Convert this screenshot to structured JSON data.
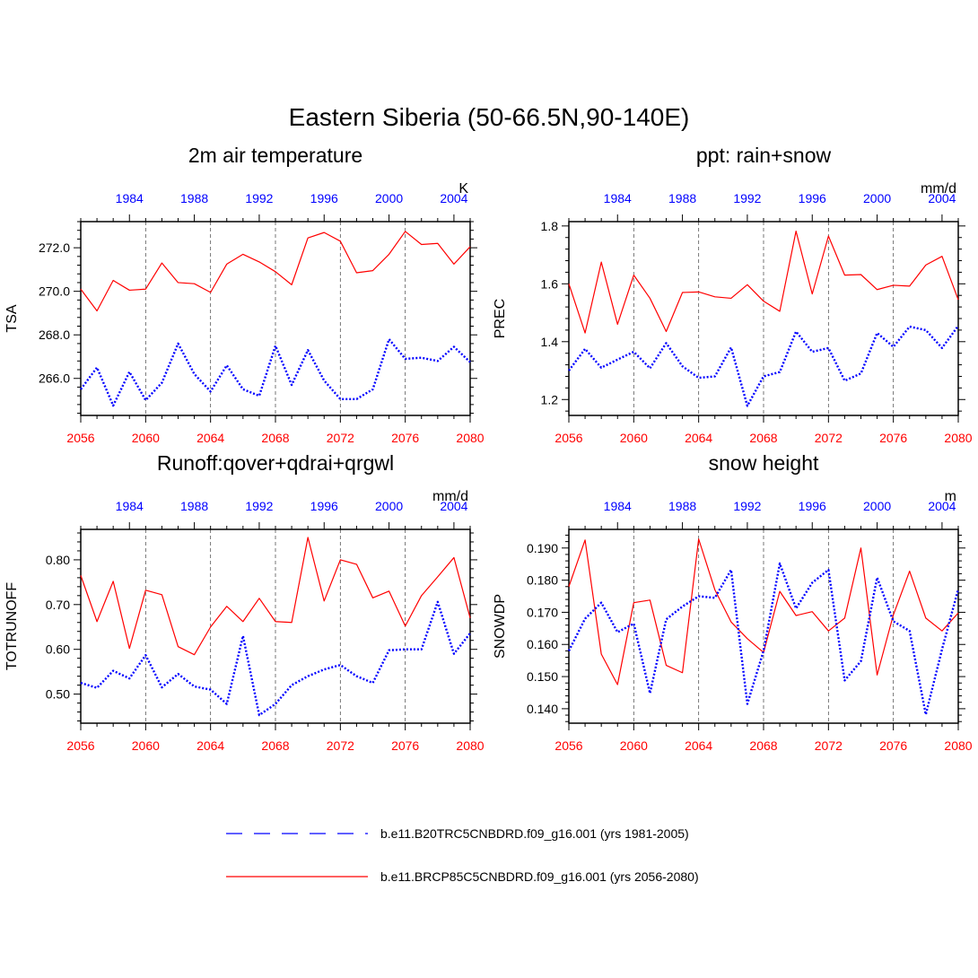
{
  "title": "Eastern Siberia (50-66.5N,90-140E)",
  "colors": {
    "bottom_axis": "#ff0000",
    "top_axis": "#0000ff",
    "future_series": "#ff0000",
    "historical_series": "#0000ff",
    "frame": "#000000",
    "gridline": "#555555"
  },
  "chart_data": [
    {
      "type": "line",
      "title": "2m air temperature",
      "ylabel": "TSA",
      "units": "K",
      "ylim": [
        264.3,
        273.2
      ],
      "yticks": [
        266.0,
        268.0,
        270.0,
        272.0
      ],
      "ytick_labels": [
        "266.0",
        "268.0",
        "270.0",
        "272.0"
      ],
      "xlim": [
        2056,
        2080
      ],
      "xticks": [
        2056,
        2060,
        2064,
        2068,
        2072,
        2076,
        2080
      ],
      "xtick_labels": [
        "2056",
        "2060",
        "2064",
        "2068",
        "2072",
        "2076",
        "2080"
      ],
      "top_xlim": [
        1981,
        2005
      ],
      "top_xticks": [
        1984,
        1988,
        1992,
        1996,
        2000,
        2004
      ],
      "top_xtick_labels": [
        "1984",
        "1988",
        "1992",
        "1996",
        "2000",
        "2004"
      ],
      "gridlines_x": [
        2060,
        2064,
        2068,
        2072,
        2076
      ],
      "series": [
        {
          "name": "b.e11.BRCP85C5CNBDRD.f09_g16.001 (yrs 2056-2080)",
          "axis": "bottom",
          "style": "solid",
          "x": [
            2056,
            2057,
            2058,
            2059,
            2060,
            2061,
            2062,
            2063,
            2064,
            2065,
            2066,
            2067,
            2068,
            2069,
            2070,
            2071,
            2072,
            2073,
            2074,
            2075,
            2076,
            2077,
            2078,
            2079,
            2080
          ],
          "values": [
            270.1,
            269.1,
            270.5,
            270.05,
            270.1,
            271.3,
            270.4,
            270.35,
            269.95,
            271.25,
            271.7,
            271.35,
            270.9,
            270.3,
            272.45,
            272.7,
            272.3,
            270.85,
            270.95,
            271.7,
            272.75,
            272.15,
            272.2,
            271.25,
            272.05
          ]
        },
        {
          "name": "b.e11.B20TRC5CNBDRD.f09_g16.001 (yrs 1981-2005)",
          "axis": "top",
          "style": "dotted",
          "x": [
            1981,
            1982,
            1983,
            1984,
            1985,
            1986,
            1987,
            1988,
            1989,
            1990,
            1991,
            1992,
            1993,
            1994,
            1995,
            1996,
            1997,
            1998,
            1999,
            2000,
            2001,
            2002,
            2003,
            2004,
            2005
          ],
          "values": [
            265.5,
            266.5,
            264.75,
            266.3,
            265.0,
            265.8,
            267.6,
            266.2,
            265.4,
            266.6,
            265.5,
            265.2,
            267.5,
            265.7,
            267.3,
            265.9,
            265.05,
            265.05,
            265.5,
            267.8,
            266.9,
            266.95,
            266.8,
            267.45,
            266.75
          ]
        }
      ]
    },
    {
      "type": "line",
      "title": "ppt: rain+snow",
      "ylabel": "PREC",
      "units": "mm/d",
      "ylim": [
        1.145,
        1.815
      ],
      "yticks": [
        1.2,
        1.4,
        1.6,
        1.8
      ],
      "ytick_labels": [
        "1.2",
        "1.4",
        "1.6",
        "1.8"
      ],
      "xlim": [
        2056,
        2080
      ],
      "xticks": [
        2056,
        2060,
        2064,
        2068,
        2072,
        2076,
        2080
      ],
      "xtick_labels": [
        "2056",
        "2060",
        "2064",
        "2068",
        "2072",
        "2076",
        "2080"
      ],
      "top_xlim": [
        1981,
        2005
      ],
      "top_xticks": [
        1984,
        1988,
        1992,
        1996,
        2000,
        2004
      ],
      "top_xtick_labels": [
        "1984",
        "1988",
        "1992",
        "1996",
        "2000",
        "2004"
      ],
      "gridlines_x": [
        2060,
        2064,
        2068,
        2072,
        2076
      ],
      "series": [
        {
          "name": "b.e11.BRCP85C5CNBDRD.f09_g16.001 (yrs 2056-2080)",
          "axis": "bottom",
          "style": "solid",
          "x": [
            2056,
            2057,
            2058,
            2059,
            2060,
            2061,
            2062,
            2063,
            2064,
            2065,
            2066,
            2067,
            2068,
            2069,
            2070,
            2071,
            2072,
            2073,
            2074,
            2075,
            2076,
            2077,
            2078,
            2079,
            2080
          ],
          "values": [
            1.6,
            1.43,
            1.675,
            1.46,
            1.63,
            1.55,
            1.435,
            1.57,
            1.572,
            1.555,
            1.55,
            1.597,
            1.54,
            1.505,
            1.782,
            1.565,
            1.765,
            1.63,
            1.632,
            1.58,
            1.595,
            1.592,
            1.665,
            1.695,
            1.545
          ]
        },
        {
          "name": "b.e11.B20TRC5CNBDRD.f09_g16.001 (yrs 1981-2005)",
          "axis": "top",
          "style": "dotted",
          "x": [
            1981,
            1982,
            1983,
            1984,
            1985,
            1986,
            1987,
            1988,
            1989,
            1990,
            1991,
            1992,
            1993,
            1994,
            1995,
            1996,
            1997,
            1998,
            1999,
            2000,
            2001,
            2002,
            2003,
            2004,
            2005
          ],
          "values": [
            1.3,
            1.375,
            1.31,
            1.338,
            1.365,
            1.308,
            1.395,
            1.315,
            1.275,
            1.28,
            1.38,
            1.178,
            1.28,
            1.295,
            1.435,
            1.365,
            1.378,
            1.265,
            1.29,
            1.43,
            1.382,
            1.452,
            1.44,
            1.378,
            1.455
          ]
        }
      ]
    },
    {
      "type": "line",
      "title": "Runoff:qover+qdrai+qrgwl",
      "ylabel": "TOTRUNOFF",
      "units": "mm/d",
      "ylim": [
        0.435,
        0.868
      ],
      "yticks": [
        0.5,
        0.6,
        0.7,
        0.8
      ],
      "ytick_labels": [
        "0.50",
        "0.60",
        "0.70",
        "0.80"
      ],
      "xlim": [
        2056,
        2080
      ],
      "xticks": [
        2056,
        2060,
        2064,
        2068,
        2072,
        2076,
        2080
      ],
      "xtick_labels": [
        "2056",
        "2060",
        "2064",
        "2068",
        "2072",
        "2076",
        "2080"
      ],
      "top_xlim": [
        1981,
        2005
      ],
      "top_xticks": [
        1984,
        1988,
        1992,
        1996,
        2000,
        2004
      ],
      "top_xtick_labels": [
        "1984",
        "1988",
        "1992",
        "1996",
        "2000",
        "2004"
      ],
      "gridlines_x": [
        2060,
        2064,
        2068,
        2072,
        2076
      ],
      "series": [
        {
          "name": "b.e11.BRCP85C5CNBDRD.f09_g16.001 (yrs 2056-2080)",
          "axis": "bottom",
          "style": "solid",
          "x": [
            2056,
            2057,
            2058,
            2059,
            2060,
            2061,
            2062,
            2063,
            2064,
            2065,
            2066,
            2067,
            2068,
            2069,
            2070,
            2071,
            2072,
            2073,
            2074,
            2075,
            2076,
            2077,
            2078,
            2079,
            2080
          ],
          "values": [
            0.765,
            0.662,
            0.752,
            0.602,
            0.732,
            0.722,
            0.606,
            0.588,
            0.65,
            0.696,
            0.662,
            0.714,
            0.662,
            0.66,
            0.85,
            0.708,
            0.8,
            0.79,
            0.715,
            0.73,
            0.652,
            0.72,
            0.762,
            0.805,
            0.67
          ]
        },
        {
          "name": "b.e11.B20TRC5CNBDRD.f09_g16.001 (yrs 1981-2005)",
          "axis": "top",
          "style": "dotted",
          "x": [
            1981,
            1982,
            1983,
            1984,
            1985,
            1986,
            1987,
            1988,
            1989,
            1990,
            1991,
            1992,
            1993,
            1994,
            1995,
            1996,
            1997,
            1998,
            1999,
            2000,
            2001,
            2002,
            2003,
            2004,
            2005
          ],
          "values": [
            0.525,
            0.514,
            0.552,
            0.535,
            0.587,
            0.515,
            0.545,
            0.517,
            0.51,
            0.478,
            0.63,
            0.453,
            0.478,
            0.52,
            0.54,
            0.555,
            0.565,
            0.54,
            0.525,
            0.598,
            0.6,
            0.6,
            0.706,
            0.59,
            0.636
          ]
        }
      ]
    },
    {
      "type": "line",
      "title": "snow height",
      "ylabel": "SNOWDP",
      "units": "m",
      "ylim": [
        0.1355,
        0.1958
      ],
      "yticks": [
        0.14,
        0.15,
        0.16,
        0.17,
        0.18,
        0.19
      ],
      "ytick_labels": [
        "0.140",
        "0.150",
        "0.160",
        "0.170",
        "0.180",
        "0.190"
      ],
      "xlim": [
        2056,
        2080
      ],
      "xticks": [
        2056,
        2060,
        2064,
        2068,
        2072,
        2076,
        2080
      ],
      "xtick_labels": [
        "2056",
        "2060",
        "2064",
        "2068",
        "2072",
        "2076",
        "2080"
      ],
      "top_xlim": [
        1981,
        2005
      ],
      "top_xticks": [
        1984,
        1988,
        1992,
        1996,
        2000,
        2004
      ],
      "top_xtick_labels": [
        "1984",
        "1988",
        "1992",
        "1996",
        "2000",
        "2004"
      ],
      "gridlines_x": [
        2060,
        2064,
        2068,
        2072,
        2076
      ],
      "series": [
        {
          "name": "b.e11.BRCP85C5CNBDRD.f09_g16.001 (yrs 2056-2080)",
          "axis": "bottom",
          "style": "solid",
          "x": [
            2056,
            2057,
            2058,
            2059,
            2060,
            2061,
            2062,
            2063,
            2064,
            2065,
            2066,
            2067,
            2068,
            2069,
            2070,
            2071,
            2072,
            2073,
            2074,
            2075,
            2076,
            2077,
            2078,
            2079,
            2080
          ],
          "values": [
            0.178,
            0.1925,
            0.157,
            0.1475,
            0.173,
            0.1738,
            0.1535,
            0.1512,
            0.1928,
            0.177,
            0.167,
            0.1618,
            0.1575,
            0.1765,
            0.169,
            0.1702,
            0.1642,
            0.1682,
            0.19,
            0.1505,
            0.1692,
            0.1828,
            0.1682,
            0.1642,
            0.1698
          ]
        },
        {
          "name": "b.e11.B20TRC5CNBDRD.f09_g16.001 (yrs 1981-2005)",
          "axis": "top",
          "style": "dotted",
          "x": [
            1981,
            1982,
            1983,
            1984,
            1985,
            1986,
            1987,
            1988,
            1989,
            1990,
            1991,
            1992,
            1993,
            1994,
            1995,
            1996,
            1997,
            1998,
            1999,
            2000,
            2001,
            2002,
            2003,
            2004,
            2005
          ],
          "values": [
            0.158,
            0.168,
            0.173,
            0.1638,
            0.1665,
            0.1448,
            0.1678,
            0.1718,
            0.175,
            0.1745,
            0.1832,
            0.1415,
            0.158,
            0.1852,
            0.1712,
            0.1792,
            0.1832,
            0.1488,
            0.1548,
            0.1808,
            0.1672,
            0.1642,
            0.1382,
            0.1585,
            0.1772
          ]
        }
      ]
    }
  ],
  "legend": [
    {
      "label": "b.e11.B20TRC5CNBDRD.f09_g16.001 (yrs 1981-2005)",
      "style": "dashed",
      "color": "#0000ff"
    },
    {
      "label": "b.e11.BRCP85C5CNBDRD.f09_g16.001 (yrs 2056-2080)",
      "style": "solid",
      "color": "#ff0000"
    }
  ]
}
